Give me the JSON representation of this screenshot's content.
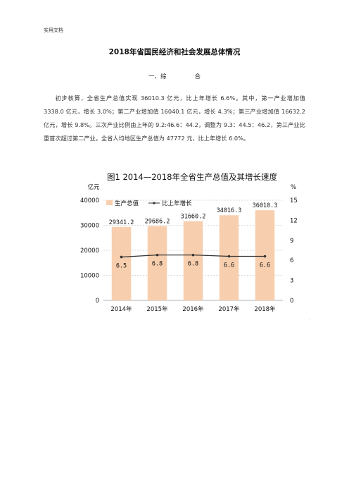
{
  "header_note": "实用文档",
  "title": "2018年省国民经济和社会发展总体情况",
  "section": {
    "part1": "一、综",
    "part2": "合"
  },
  "paragraph": "初步核算，全省生产总值实现 36010.3 亿元，比上年增长 6.6%。其中，第一产业增加值 3338.0 亿元，增长 3.0%；第二产业增加值 16040.1 亿元，增长 4.3%；第三产业增加值 16632.2 亿元，增长 9.8%。三次产业比例由上年的 9.2:46.6：44.2，调整为 9.3：44.5：46.2，第三产业比重首次超过第二产业。全省人均地区生产总值为 47772 元，比上年增长 6.0%。",
  "footer_mark": "·",
  "chart_data": {
    "type": "bar",
    "title": "图1  2014—2018年全省生产总值及其增长速度",
    "left_unit": "亿元",
    "right_unit": "%",
    "categories": [
      "2014年",
      "2015年",
      "2016年",
      "2017年",
      "2018年"
    ],
    "series": [
      {
        "name": "生产总值",
        "kind": "bar",
        "axis": "left",
        "color": "#f8cfae",
        "values": [
          29341.2,
          29686.2,
          31660.2,
          34016.3,
          36010.3
        ],
        "labels": [
          "29341.2",
          "29686.2",
          "31660.2",
          "34016.3",
          "36010.3"
        ]
      },
      {
        "name": "比上年增长",
        "kind": "line",
        "axis": "right",
        "color": "#333333",
        "values": [
          6.5,
          6.8,
          6.8,
          6.6,
          6.6
        ],
        "labels": [
          "6.5",
          "6.8",
          "6.8",
          "6.6",
          "6.6"
        ]
      }
    ],
    "left_axis": {
      "min": 0,
      "max": 40000,
      "ticks": [
        "0",
        "10000",
        "20000",
        "30000",
        "40000"
      ]
    },
    "right_axis": {
      "min": 0,
      "max": 15,
      "ticks": [
        "0",
        "3",
        "6",
        "9",
        "12",
        "15"
      ]
    },
    "grid": true,
    "legend_position": "top-left"
  }
}
